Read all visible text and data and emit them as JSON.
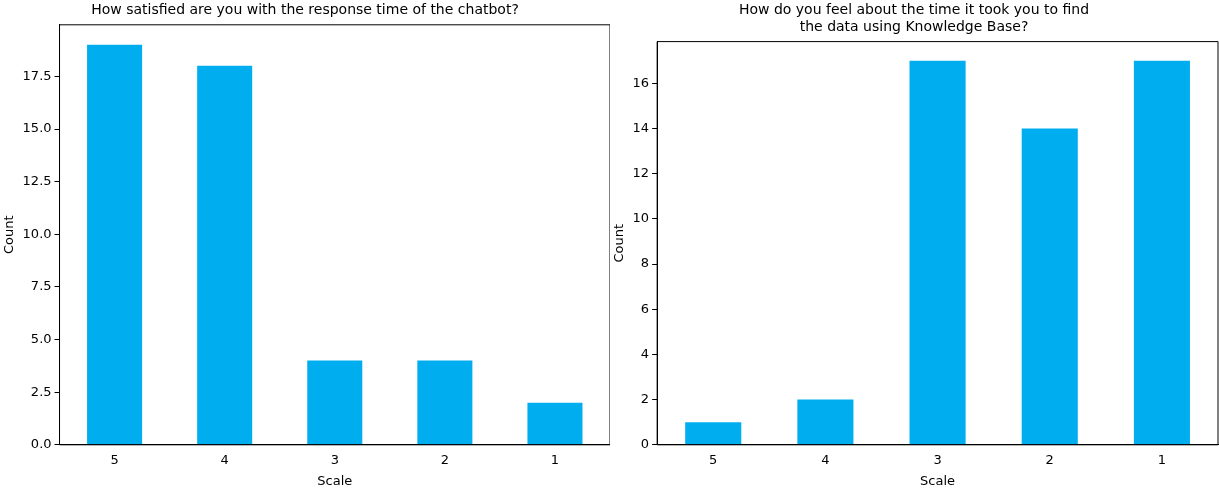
{
  "chart_data": [
    {
      "type": "bar",
      "title": "How satisfied are you with the response time of the chatbot?",
      "xlabel": "Scale",
      "ylabel": "Count",
      "categories": [
        "5",
        "4",
        "3",
        "2",
        "1"
      ],
      "values": [
        19,
        18,
        4,
        4,
        2
      ],
      "color": "#00aeef",
      "ylim": [
        0,
        19.95
      ],
      "yticks": [
        {
          "value": 0,
          "label": "0.0"
        },
        {
          "value": 2.5,
          "label": "2.5"
        },
        {
          "value": 5,
          "label": "5.0"
        },
        {
          "value": 7.5,
          "label": "7.5"
        },
        {
          "value": 10,
          "label": "10.0"
        },
        {
          "value": 12.5,
          "label": "12.5"
        },
        {
          "value": 15,
          "label": "15.0"
        },
        {
          "value": 17.5,
          "label": "17.5"
        }
      ],
      "grid": false,
      "legend": false
    },
    {
      "type": "bar",
      "title": "How do you feel about the time it took you to find\nthe data using Knowledge Base?",
      "xlabel": "Scale",
      "ylabel": "Count",
      "categories": [
        "5",
        "4",
        "3",
        "2",
        "1"
      ],
      "values": [
        1,
        2,
        17,
        14,
        17
      ],
      "color": "#00aeef",
      "ylim": [
        0,
        17.85
      ],
      "yticks": [
        0,
        2,
        4,
        6,
        8,
        10,
        12,
        14,
        16
      ],
      "grid": false,
      "legend": false
    }
  ]
}
